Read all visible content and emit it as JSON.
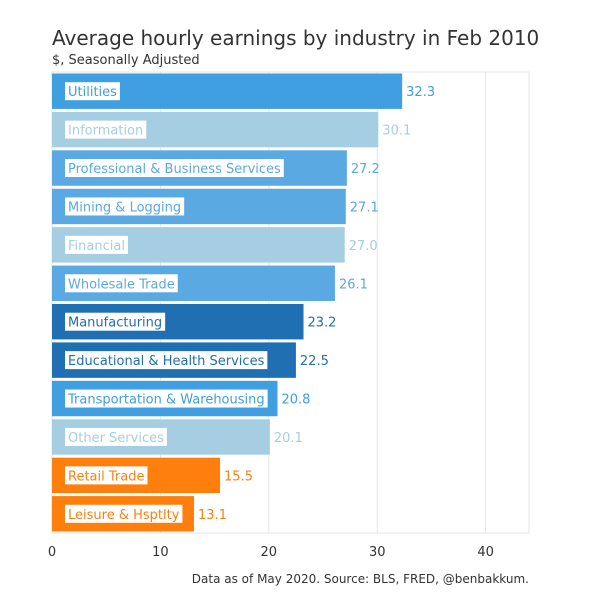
{
  "chart_data": {
    "type": "bar",
    "orientation": "horizontal",
    "title": "Average hourly earnings by industry in Feb 2010",
    "subtitle": "$, Seasonally Adjusted",
    "source": "Data as of May 2020. Source: BLS, FRED, @benbakkum.",
    "xlim": [
      0,
      44
    ],
    "xticks": [
      0,
      10,
      20,
      30,
      40
    ],
    "grid": true,
    "categories": [
      "Utilities",
      "Information",
      "Professional & Business Services",
      "Mining & Logging",
      "Financial",
      "Wholesale Trade",
      "Manufacturing",
      "Educational & Health Services",
      "Transportation & Warehousing",
      "Other Services",
      "Retail Trade",
      "Leisure & Hsptlty"
    ],
    "values": [
      32.3,
      30.1,
      27.2,
      27.1,
      27.0,
      26.1,
      23.2,
      22.5,
      20.8,
      20.1,
      15.5,
      13.1
    ],
    "value_labels": [
      "32.3",
      "30.1",
      "27.2",
      "27.1",
      "27.0",
      "26.1",
      "23.2",
      "22.5",
      "20.8",
      "20.1",
      "15.5",
      "13.1"
    ],
    "colors": [
      "#3f9fe0",
      "#a6cee3",
      "#5aa9e3",
      "#5aa9e3",
      "#a6cee3",
      "#5aa9e3",
      "#1f6fb2",
      "#1f6fb2",
      "#3f9fe0",
      "#a6cee3",
      "#ff7f0e",
      "#ff7f0e"
    ]
  }
}
